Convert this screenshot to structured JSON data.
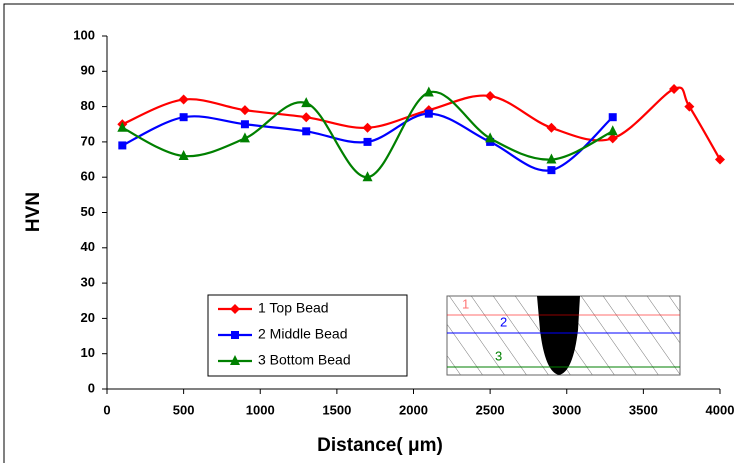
{
  "chart_data": {
    "type": "line",
    "xlabel": "Distance( μm)",
    "ylabel": "HVN",
    "xlim": [
      0,
      4000
    ],
    "xticks": [
      0,
      500,
      1000,
      1500,
      2000,
      2500,
      3000,
      3500,
      4000
    ],
    "ylim": [
      0,
      100
    ],
    "yticks": [
      0,
      10,
      20,
      30,
      40,
      50,
      60,
      70,
      80,
      90,
      100
    ],
    "legend": "bottom",
    "series": [
      {
        "name": "1 Top Bead",
        "color": "#ff0000",
        "marker": "diamond",
        "x": [
          100,
          500,
          900,
          1300,
          1700,
          2100,
          2500,
          2900,
          3300,
          3700,
          3800,
          4000
        ],
        "values": [
          75,
          82,
          79,
          77,
          74,
          79,
          83,
          74,
          71,
          85,
          80,
          65
        ]
      },
      {
        "name": "2 Middle Bead",
        "color": "#0000ff",
        "marker": "square",
        "x": [
          100,
          500,
          900,
          1300,
          1700,
          2100,
          2500,
          2900,
          3300
        ],
        "values": [
          69,
          77,
          75,
          73,
          70,
          78,
          70,
          62,
          77
        ]
      },
      {
        "name": "3 Bottom Bead",
        "color": "#008000",
        "marker": "triangle",
        "x": [
          100,
          500,
          900,
          1300,
          1700,
          2100,
          2500,
          2900,
          3300
        ],
        "values": [
          74,
          66,
          71,
          81,
          60,
          84,
          71,
          65,
          73
        ]
      }
    ],
    "inset_labels": [
      "1",
      "2",
      "3"
    ]
  }
}
